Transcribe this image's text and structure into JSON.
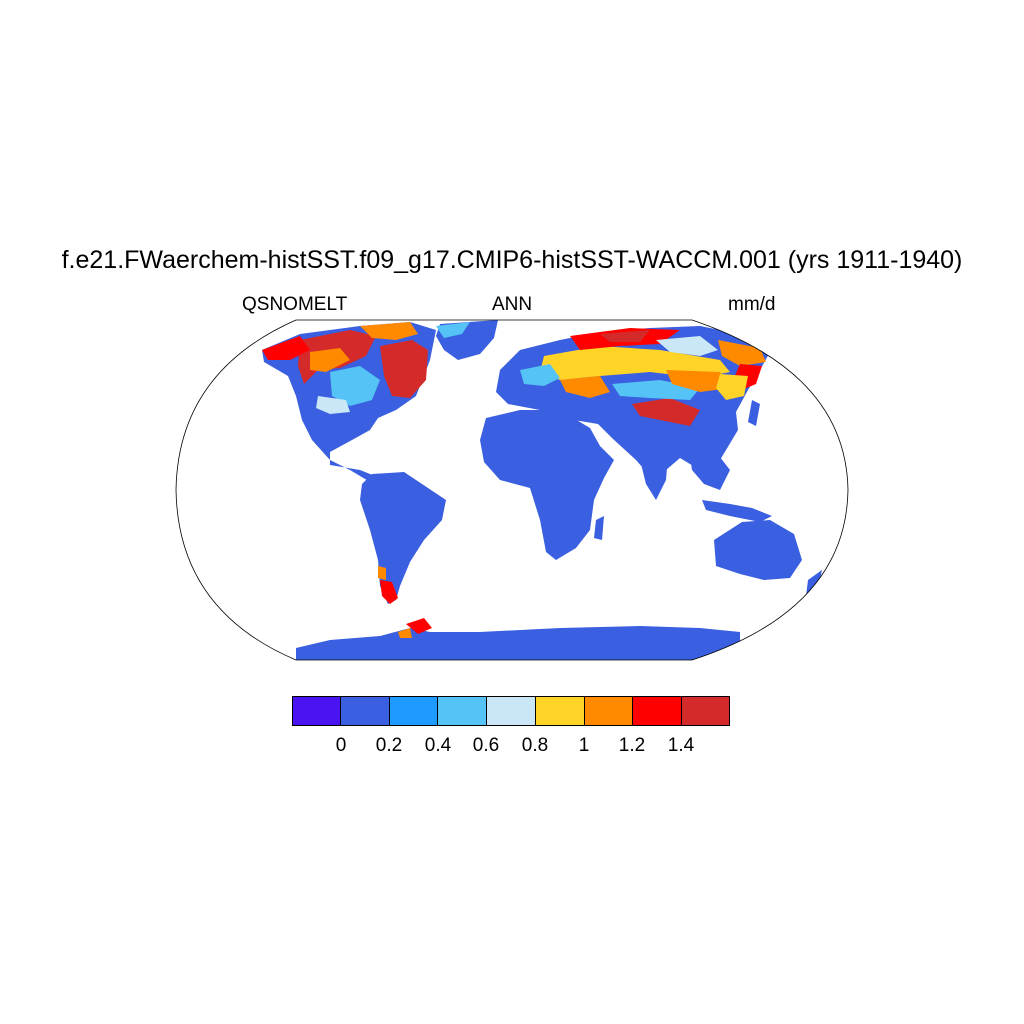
{
  "header": {
    "title": "f.e21.FWaerchem-histSST.f09_g17.CMIP6-histSST-WACCM.001 (yrs 1911-1940)",
    "left_label": "QSNOMELT",
    "center_label": "ANN",
    "right_label": "mm/d"
  },
  "colorbar": {
    "colors": [
      "#4a14f2",
      "#3a5fe0",
      "#1f9bff",
      "#55c3f5",
      "#c9e7f7",
      "#ffd426",
      "#ff8a00",
      "#ff0000",
      "#d42a2a"
    ],
    "tick_labels": [
      "0",
      "0.2",
      "0.4",
      "0.6",
      "0.8",
      "1",
      "1.2",
      "1.4"
    ]
  },
  "map": {
    "projection": "Robinson",
    "ocean_color": "#ffffff",
    "land_color": "#3a5fe0"
  }
}
